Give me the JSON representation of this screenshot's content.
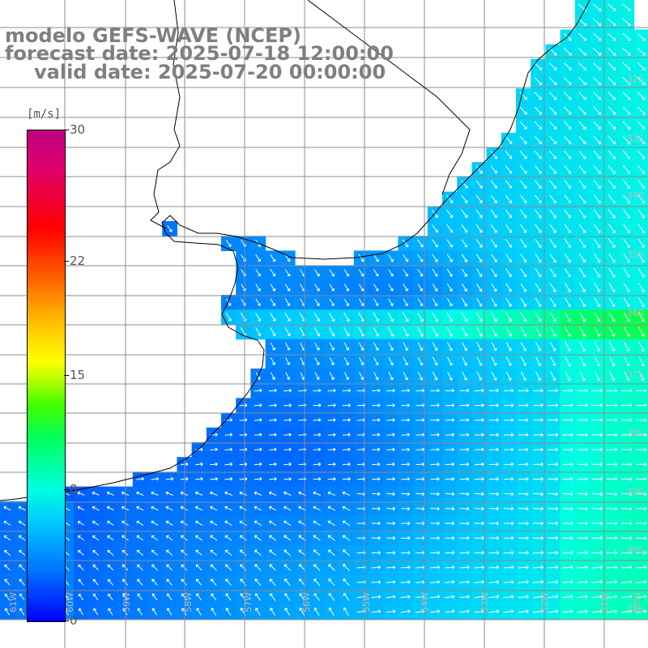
{
  "title": {
    "line1": "modelo GEFS-WAVE (NCEP)",
    "line2": "forecast date: 2025-07-18 12:00:00",
    "line3": "valid date: 2025-07-20 00:00:00"
  },
  "colorbar": {
    "units": "[m/s]",
    "min": 0,
    "max": 30,
    "ticks": [
      {
        "value": 30,
        "label": "30"
      },
      {
        "value": 22,
        "label": "22"
      },
      {
        "value": 15,
        "label": "15"
      },
      {
        "value": 8,
        "label": "8"
      },
      {
        "value": 0,
        "label": "0"
      }
    ]
  },
  "map": {
    "lat_labels": [
      "32S",
      "33S",
      "34S",
      "35S",
      "36S",
      "37S",
      "38S",
      "39S",
      "40S",
      "41S"
    ],
    "lon_labels": [
      "61W",
      "60W",
      "59W",
      "58W",
      "57W",
      "56W",
      "55W",
      "54W",
      "53W",
      "52W",
      "51W",
      "50W"
    ],
    "colors": {
      "land": "#ffffff",
      "grid": "#8c8c8c",
      "coast": "#000000",
      "arrow": "#ffffff"
    }
  }
}
